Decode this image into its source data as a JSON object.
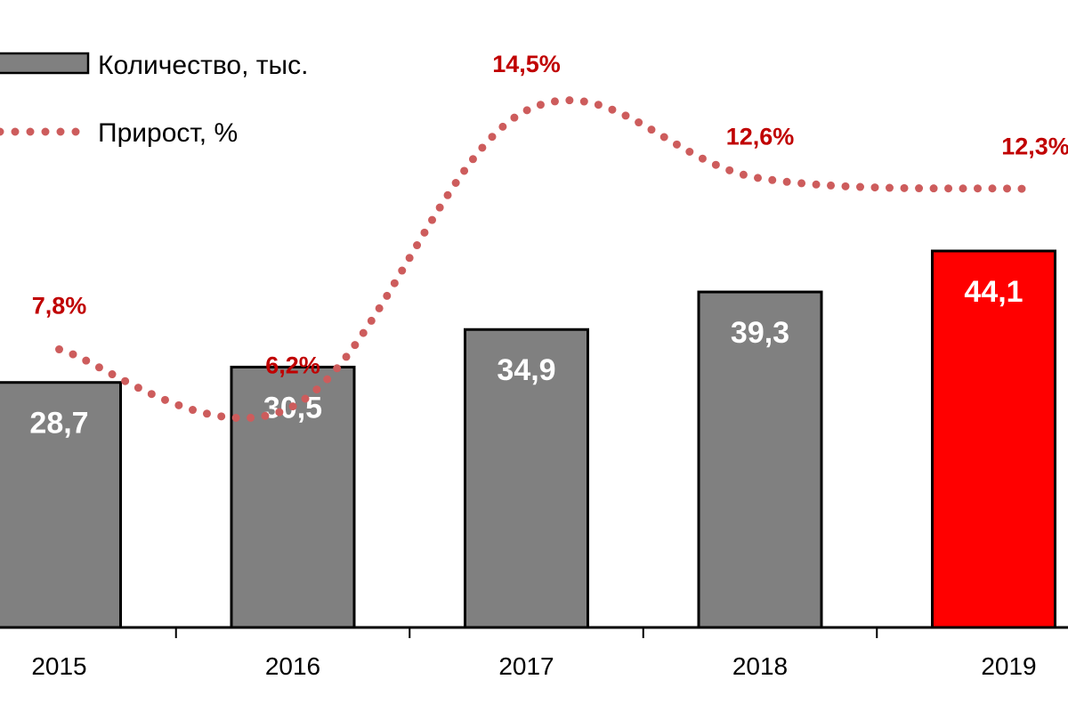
{
  "chart_data": {
    "type": "bar",
    "title": "",
    "xlabel": "",
    "ylabel": "",
    "categories": [
      "2015",
      "2016",
      "2017",
      "2018",
      "2019"
    ],
    "series": [
      {
        "name": "Количество, тыс.",
        "type": "bar",
        "values": [
          28.7,
          30.5,
          34.9,
          39.3,
          44.1
        ],
        "labels": [
          "28,7",
          "30,5",
          "34,9",
          "39,3",
          "44,1"
        ],
        "colors": [
          "#808080",
          "#808080",
          "#808080",
          "#808080",
          "#ff0000"
        ]
      },
      {
        "name": "Прирост, %",
        "type": "line",
        "style": "dotted",
        "color": "#cd5c5c",
        "values": [
          7.8,
          6.2,
          14.5,
          12.6,
          12.3
        ],
        "labels": [
          "7,8%",
          "6,2%",
          "14,5%",
          "12,6%",
          "12,3%"
        ]
      }
    ],
    "ylim": [
      0,
      73.5
    ],
    "y2lim": [
      0,
      17.6
    ],
    "grid": false,
    "legend": {
      "position": "top-left",
      "entries": [
        "Количество, тыс.",
        "Прирост, %"
      ]
    },
    "label_color": "#c00000",
    "bar_label_color": "#ffffff"
  }
}
